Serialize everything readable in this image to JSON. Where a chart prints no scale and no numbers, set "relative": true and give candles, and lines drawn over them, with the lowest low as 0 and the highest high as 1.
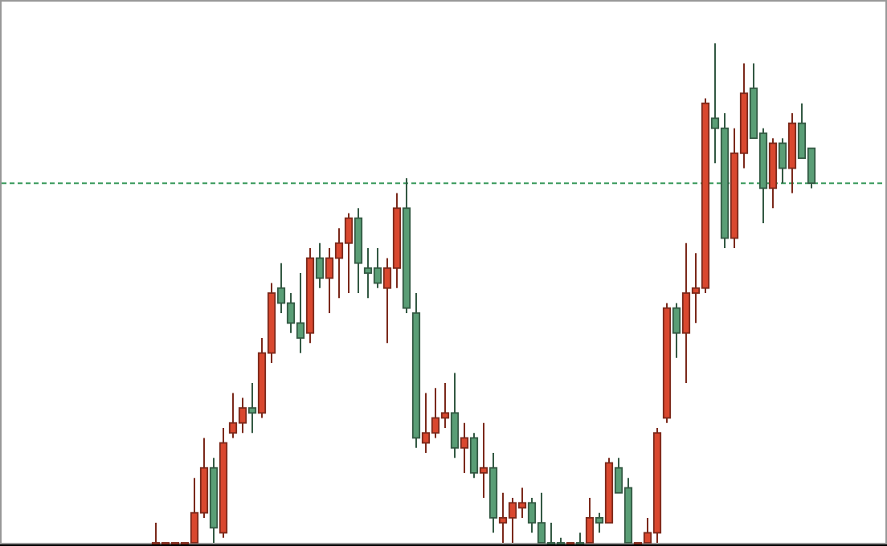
{
  "chart_data": {
    "type": "candlestick",
    "relative": true,
    "categories": [
      null,
      null,
      null,
      null,
      null,
      null,
      null,
      null,
      null,
      null,
      null,
      null,
      null,
      null,
      null,
      null,
      null,
      null,
      null,
      null,
      null,
      null,
      null,
      null,
      null,
      null,
      null,
      null,
      null,
      null,
      null,
      null,
      null,
      null,
      null,
      null,
      null,
      null,
      null,
      null,
      null,
      null,
      null,
      null,
      null,
      null,
      null,
      null,
      null,
      null,
      null,
      null,
      null,
      null,
      null,
      null,
      null,
      null,
      null,
      null,
      null,
      null,
      null,
      null,
      null,
      null,
      null,
      null,
      null
    ],
    "colors": [
      "#d9482f",
      "#d9482f",
      "#d9482f",
      "#d9482f",
      "#d9482f",
      "#d9482f",
      "#5a9e76",
      "#d9482f",
      "#d9482f",
      "#d9482f",
      "#5a9e76",
      "#d9482f",
      "#d9482f",
      "#5a9e76",
      "#5a9e76",
      "#5a9e76",
      "#d9482f",
      "#5a9e76",
      "#d9482f",
      "#d9482f",
      "#d9482f",
      "#5a9e76",
      "#5a9e76",
      "#5a9e76",
      "#d9482f",
      "#d9482f",
      "#5a9e76",
      "#5a9e76",
      "#d9482f",
      "#d9482f",
      "#d9482f",
      "#5a9e76",
      "#d9482f",
      "#5a9e76",
      "#d9482f",
      "#5a9e76",
      "#d9482f",
      "#d9482f",
      "#d9482f",
      "#5a9e76",
      "#5a9e76",
      "#5a9e76",
      "#5a9e76",
      "#d9482f",
      "#5a9e76",
      "#d9482f",
      "#5a9e76",
      "#d9482f",
      "#5a9e76",
      "#5a9e76",
      "#d9482f",
      "#d9482f",
      "#d9482f",
      "#d9482f",
      "#5a9e76",
      "#d9482f",
      "#d9482f",
      "#d9482f",
      "#5a9e76",
      "#5a9e76",
      "#d9482f",
      "#d9482f",
      "#5a9e76",
      "#5a9e76",
      "#d9482f",
      "#5a9e76",
      "#d9482f",
      "#5a9e76",
      "#5a9e76"
    ],
    "ohlc": [
      [
        0,
        0.04,
        0,
        0
      ],
      [
        0,
        0,
        0,
        0
      ],
      [
        0,
        0,
        0,
        0
      ],
      [
        0,
        0,
        0,
        0
      ],
      [
        0,
        0.13,
        0,
        0.06
      ],
      [
        0.06,
        0.21,
        0.05,
        0.15
      ],
      [
        0.15,
        0.17,
        0,
        0.03
      ],
      [
        0.02,
        0.23,
        0.01,
        0.2
      ],
      [
        0.22,
        0.3,
        0.21,
        0.24
      ],
      [
        0.24,
        0.29,
        0.22,
        0.27
      ],
      [
        0.27,
        0.32,
        0.22,
        0.26
      ],
      [
        0.26,
        0.41,
        0.25,
        0.38
      ],
      [
        0.38,
        0.52,
        0.36,
        0.5
      ],
      [
        0.51,
        0.56,
        0.46,
        0.48
      ],
      [
        0.48,
        0.5,
        0.42,
        0.44
      ],
      [
        0.44,
        0.54,
        0.38,
        0.41
      ],
      [
        0.42,
        0.59,
        0.4,
        0.57
      ],
      [
        0.57,
        0.6,
        0.51,
        0.53
      ],
      [
        0.53,
        0.59,
        0.46,
        0.57
      ],
      [
        0.57,
        0.63,
        0.49,
        0.6
      ],
      [
        0.6,
        0.66,
        0.5,
        0.65
      ],
      [
        0.65,
        0.67,
        0.5,
        0.56
      ],
      [
        0.55,
        0.59,
        0.49,
        0.54
      ],
      [
        0.55,
        0.59,
        0.51,
        0.52
      ],
      [
        0.51,
        0.57,
        0.4,
        0.55
      ],
      [
        0.55,
        0.7,
        0.51,
        0.67
      ],
      [
        0.67,
        0.73,
        0.46,
        0.47
      ],
      [
        0.46,
        0.5,
        0.19,
        0.21
      ],
      [
        0.2,
        0.3,
        0.18,
        0.22
      ],
      [
        0.22,
        0.31,
        0.21,
        0.25
      ],
      [
        0.25,
        0.32,
        0.23,
        0.26
      ],
      [
        0.26,
        0.34,
        0.17,
        0.19
      ],
      [
        0.19,
        0.24,
        0.14,
        0.21
      ],
      [
        0.21,
        0.22,
        0.13,
        0.14
      ],
      [
        0.14,
        0.24,
        0.09,
        0.15
      ],
      [
        0.15,
        0.18,
        0.02,
        0.05
      ],
      [
        0.04,
        0.1,
        0,
        0.05
      ],
      [
        0.05,
        0.09,
        0,
        0.08
      ],
      [
        0.07,
        0.11,
        0.05,
        0.08
      ],
      [
        0.08,
        0.09,
        0.02,
        0.04
      ],
      [
        0.04,
        0.1,
        0,
        0
      ],
      [
        0,
        0.04,
        0,
        0
      ],
      [
        0,
        0.01,
        0,
        0
      ],
      [
        0,
        0,
        0,
        0
      ],
      [
        0,
        0.02,
        0,
        0
      ],
      [
        0,
        0.09,
        0,
        0.05
      ],
      [
        0.05,
        0.06,
        0.02,
        0.04
      ],
      [
        0.04,
        0.17,
        0.04,
        0.16
      ],
      [
        0.15,
        0.17,
        0.1,
        0.1
      ],
      [
        0.11,
        0.13,
        0,
        0
      ],
      [
        0,
        0,
        0,
        0
      ],
      [
        0,
        0.05,
        0,
        0.02
      ],
      [
        0.02,
        0.23,
        0,
        0.22
      ],
      [
        0.25,
        0.48,
        0.24,
        0.47
      ],
      [
        0.47,
        0.48,
        0.37,
        0.42
      ],
      [
        0.42,
        0.6,
        0.32,
        0.5
      ],
      [
        0.5,
        0.58,
        0.44,
        0.51
      ],
      [
        0.51,
        0.89,
        0.5,
        0.88
      ],
      [
        0.85,
        1,
        0.76,
        0.83
      ],
      [
        0.83,
        0.86,
        0.59,
        0.61
      ],
      [
        0.61,
        0.83,
        0.59,
        0.78
      ],
      [
        0.78,
        0.96,
        0.75,
        0.9
      ],
      [
        0.91,
        0.96,
        0.81,
        0.81
      ],
      [
        0.82,
        0.83,
        0.64,
        0.71
      ],
      [
        0.71,
        0.81,
        0.67,
        0.8
      ],
      [
        0.8,
        0.81,
        0.72,
        0.75
      ],
      [
        0.75,
        0.86,
        0.7,
        0.84
      ],
      [
        0.84,
        0.88,
        0.77,
        0.77
      ],
      [
        0.79,
        0.79,
        0.71,
        0.72
      ]
    ],
    "ref_lines": [
      {
        "axis": "y",
        "value": 0.72,
        "color": "#3a9a5c",
        "line_style": "dashed"
      }
    ]
  }
}
